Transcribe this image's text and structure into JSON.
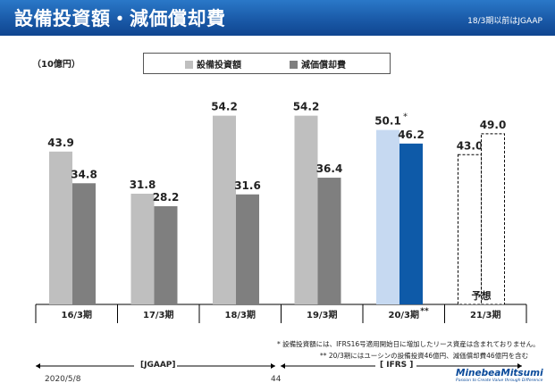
{
  "header": {
    "title": "設備投資額・減価償却費",
    "note": "18/3期以前はJGAAP"
  },
  "chart_data": {
    "type": "bar",
    "unit_label": "（10億円）",
    "categories": [
      "16/3期",
      "17/3期",
      "18/3期",
      "19/3期",
      "20/3期",
      "21/3期"
    ],
    "series": [
      {
        "name": "設備投資額",
        "values": [
          43.9,
          31.8,
          54.2,
          54.2,
          50.1,
          43.0
        ],
        "labels": [
          "43.9",
          "31.8",
          "54.2",
          "54.2",
          "50.1",
          "43.0"
        ]
      },
      {
        "name": "減価償却費",
        "values": [
          34.8,
          28.2,
          31.6,
          36.4,
          46.2,
          49.0
        ],
        "labels": [
          "34.8",
          "28.2",
          "31.6",
          "36.4",
          "46.2",
          "49.0"
        ]
      }
    ],
    "colors": {
      "capex": "#bfbfbf",
      "depr": "#7f7f7f",
      "capex_fy20": "#c6d9f1",
      "depr_fy20": "#0e5aa8",
      "forecast_fill": "#ffffff",
      "forecast_border": "#000000"
    },
    "forecast_category": "21/3期",
    "forecast_label": "予想",
    "annotations": {
      "fy20_capex_mark": "*",
      "fy20_category_mark": "**"
    },
    "ylim": [
      0,
      60
    ]
  },
  "footnotes": {
    "note1": "* 設備投資額には、IFRS16号適用開始日に増加したリース資産は含まれておりません。",
    "note2": "** 20/3期にはユーシンの設備投資46億円、減価償却費46億円を含む"
  },
  "standards": {
    "jgaap": "[JGAAP]",
    "ifrs": "[ IFRS ]"
  },
  "footer": {
    "date": "2020/5/8",
    "page": "44",
    "logo_name": "MinebeaMitsumi",
    "logo_tagline": "Passion to Create Value through Difference"
  }
}
